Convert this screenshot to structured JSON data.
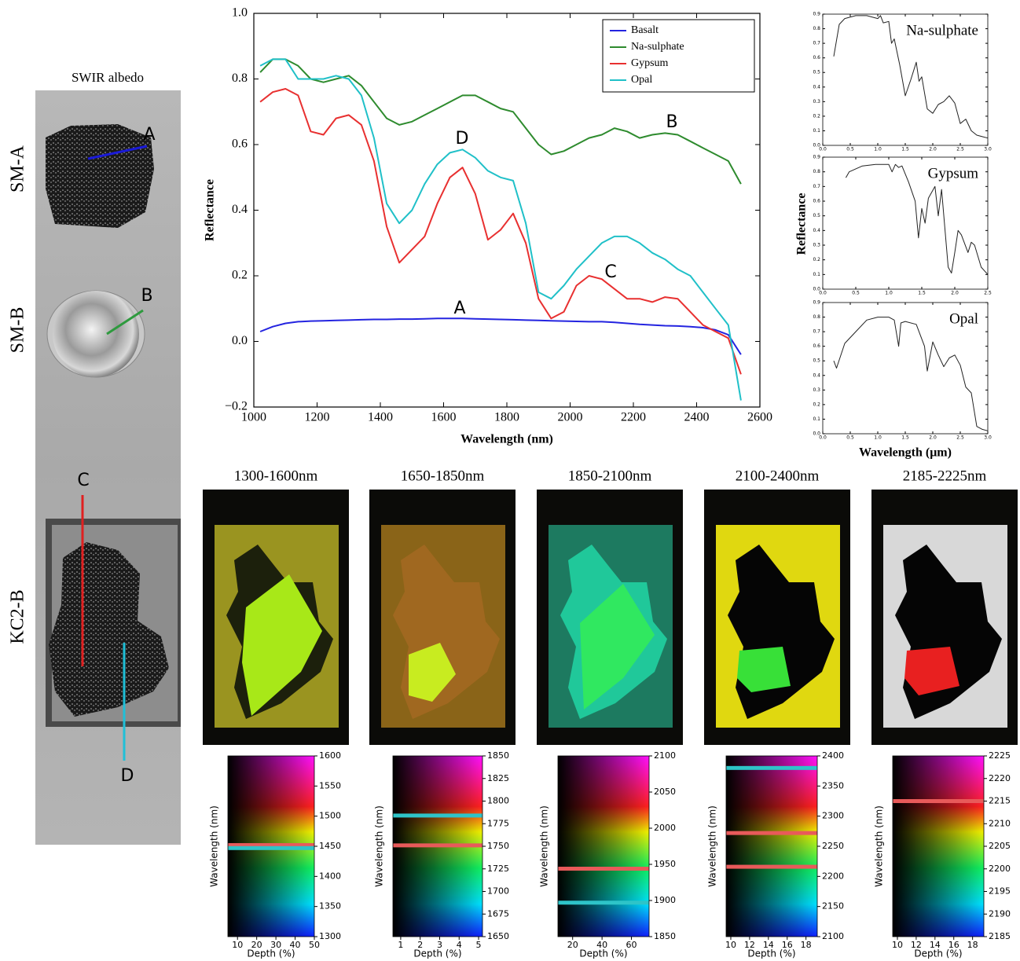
{
  "photo": {
    "title": "SWIR albedo",
    "samples": [
      "SM-A",
      "SM-B",
      "KC2-B"
    ],
    "markers": [
      {
        "label": "A",
        "color": "#1a1ad8"
      },
      {
        "label": "B",
        "color": "#2e9a3e"
      },
      {
        "label": "C",
        "color": "#e02020"
      },
      {
        "label": "D",
        "color": "#20c0d8"
      }
    ]
  },
  "chart_data": [
    {
      "type": "line",
      "xlabel": "Wavelength  (nm)",
      "ylabel": "Reflectance",
      "x": [
        1020,
        1060,
        1100,
        1140,
        1180,
        1220,
        1260,
        1300,
        1340,
        1380,
        1420,
        1460,
        1500,
        1540,
        1580,
        1620,
        1660,
        1700,
        1740,
        1780,
        1820,
        1860,
        1900,
        1940,
        1980,
        2020,
        2060,
        2100,
        2140,
        2180,
        2220,
        2260,
        2300,
        2340,
        2380,
        2420,
        2460,
        2500,
        2540
      ],
      "series": [
        {
          "name": "Basalt",
          "color": "#2424e0",
          "values": [
            0.03,
            0.045,
            0.055,
            0.06,
            0.062,
            0.063,
            0.064,
            0.065,
            0.066,
            0.067,
            0.067,
            0.068,
            0.068,
            0.069,
            0.07,
            0.07,
            0.07,
            0.069,
            0.068,
            0.067,
            0.066,
            0.065,
            0.064,
            0.063,
            0.062,
            0.061,
            0.06,
            0.06,
            0.058,
            0.055,
            0.052,
            0.05,
            0.048,
            0.047,
            0.045,
            0.042,
            0.035,
            0.02,
            -0.04
          ]
        },
        {
          "name": "Na-sulphate",
          "color": "#2e8b2e",
          "values": [
            0.82,
            0.86,
            0.86,
            0.84,
            0.8,
            0.79,
            0.8,
            0.81,
            0.78,
            0.73,
            0.68,
            0.66,
            0.67,
            0.69,
            0.71,
            0.73,
            0.75,
            0.75,
            0.73,
            0.71,
            0.7,
            0.65,
            0.6,
            0.57,
            0.58,
            0.6,
            0.62,
            0.63,
            0.65,
            0.64,
            0.62,
            0.63,
            0.635,
            0.63,
            0.61,
            0.59,
            0.57,
            0.55,
            0.48
          ]
        },
        {
          "name": "Gypsum",
          "color": "#e83030",
          "values": [
            0.73,
            0.76,
            0.77,
            0.75,
            0.64,
            0.63,
            0.68,
            0.69,
            0.66,
            0.55,
            0.35,
            0.24,
            0.28,
            0.32,
            0.42,
            0.5,
            0.53,
            0.45,
            0.31,
            0.34,
            0.39,
            0.3,
            0.13,
            0.07,
            0.09,
            0.17,
            0.2,
            0.19,
            0.16,
            0.13,
            0.13,
            0.12,
            0.135,
            0.13,
            0.09,
            0.05,
            0.03,
            0.01,
            -0.1
          ]
        },
        {
          "name": "Opal",
          "color": "#20c0c8",
          "values": [
            0.84,
            0.86,
            0.86,
            0.8,
            0.8,
            0.8,
            0.81,
            0.8,
            0.75,
            0.62,
            0.42,
            0.36,
            0.4,
            0.48,
            0.54,
            0.575,
            0.585,
            0.56,
            0.52,
            0.5,
            0.49,
            0.36,
            0.15,
            0.13,
            0.17,
            0.22,
            0.26,
            0.3,
            0.32,
            0.32,
            0.3,
            0.27,
            0.25,
            0.22,
            0.2,
            0.15,
            0.1,
            0.05,
            -0.18
          ]
        }
      ],
      "annotations": [
        "A",
        "B",
        "C",
        "D"
      ],
      "xlim": [
        1000,
        2600
      ],
      "xticks": [
        1000,
        1200,
        1400,
        1600,
        1800,
        2000,
        2200,
        2400,
        2600
      ],
      "ylim": [
        -0.2,
        1.0
      ],
      "yticks": [
        {
          "value": -0.2,
          "label": "−0.2"
        },
        {
          "value": 0,
          "label": "0.0"
        },
        0.2,
        0.4,
        0.6,
        0.8,
        {
          "value": 1,
          "label": "1.0"
        }
      ],
      "legend": "upper right"
    },
    {
      "type": "line",
      "title": "Na-sulphate",
      "x": [
        0.2,
        0.3,
        0.4,
        0.6,
        0.8,
        1.0,
        1.05,
        1.1,
        1.2,
        1.25,
        1.3,
        1.4,
        1.5,
        1.6,
        1.7,
        1.75,
        1.8,
        1.9,
        2.0,
        2.1,
        2.2,
        2.3,
        2.4,
        2.5,
        2.6,
        2.7,
        2.8,
        2.9,
        3.0
      ],
      "series": [
        {
          "color": "#222222",
          "values": [
            0.61,
            0.83,
            0.87,
            0.89,
            0.89,
            0.87,
            0.89,
            0.84,
            0.85,
            0.7,
            0.73,
            0.55,
            0.34,
            0.45,
            0.57,
            0.44,
            0.47,
            0.25,
            0.22,
            0.28,
            0.3,
            0.34,
            0.29,
            0.15,
            0.18,
            0.1,
            0.07,
            0.06,
            0.05
          ]
        }
      ],
      "xlim": [
        0,
        3
      ],
      "xticks": [
        {
          "value": 0,
          "label": "0.0"
        },
        0.5,
        {
          "value": 1,
          "label": "1.0"
        },
        1.5,
        {
          "value": 2,
          "label": "2.0"
        },
        2.5,
        {
          "value": 3,
          "label": "3.0"
        }
      ],
      "ylim": [
        0,
        0.9
      ],
      "yticks": [
        {
          "value": 0,
          "label": "0.0"
        },
        0.1,
        0.2,
        0.3,
        0.4,
        0.5,
        0.6,
        0.7,
        0.8,
        0.9
      ]
    },
    {
      "type": "line",
      "title": "Gypsum",
      "ylabel": "Reflectance",
      "x": [
        0.35,
        0.4,
        0.6,
        0.8,
        1.0,
        1.05,
        1.1,
        1.15,
        1.2,
        1.3,
        1.4,
        1.45,
        1.5,
        1.55,
        1.6,
        1.7,
        1.75,
        1.8,
        1.9,
        1.95,
        2.0,
        2.05,
        2.1,
        2.2,
        2.25,
        2.3,
        2.4,
        2.5
      ],
      "series": [
        {
          "color": "#222222",
          "values": [
            0.76,
            0.8,
            0.84,
            0.85,
            0.85,
            0.8,
            0.85,
            0.83,
            0.84,
            0.73,
            0.6,
            0.35,
            0.55,
            0.45,
            0.62,
            0.7,
            0.5,
            0.68,
            0.15,
            0.11,
            0.25,
            0.4,
            0.37,
            0.25,
            0.32,
            0.3,
            0.15,
            0.1
          ]
        }
      ],
      "xlim": [
        0,
        2.5
      ],
      "xticks": [
        {
          "value": 0,
          "label": "0.0"
        },
        0.5,
        {
          "value": 1,
          "label": "1.0"
        },
        1.5,
        {
          "value": 2,
          "label": "2.0"
        },
        2.5
      ],
      "ylim": [
        0,
        0.9
      ],
      "yticks": [
        {
          "value": 0,
          "label": "0.0"
        },
        0.1,
        0.2,
        0.3,
        0.4,
        0.5,
        0.6,
        0.7,
        0.8,
        0.9
      ]
    },
    {
      "type": "line",
      "title": "Opal",
      "xlabel": "Wavelength (μm)",
      "x": [
        0.2,
        0.25,
        0.4,
        0.6,
        0.8,
        1.0,
        1.2,
        1.3,
        1.38,
        1.42,
        1.5,
        1.7,
        1.85,
        1.9,
        2.0,
        2.1,
        2.2,
        2.3,
        2.4,
        2.5,
        2.6,
        2.7,
        2.8,
        2.9,
        3.0
      ],
      "series": [
        {
          "color": "#222222",
          "values": [
            0.5,
            0.45,
            0.62,
            0.7,
            0.78,
            0.8,
            0.8,
            0.78,
            0.6,
            0.76,
            0.77,
            0.75,
            0.6,
            0.43,
            0.63,
            0.54,
            0.46,
            0.52,
            0.54,
            0.47,
            0.32,
            0.28,
            0.05,
            0.03,
            0.02
          ]
        }
      ],
      "xlim": [
        0,
        3
      ],
      "xticks": [
        {
          "value": 0,
          "label": "0.0"
        },
        0.5,
        {
          "value": 1,
          "label": "1.0"
        },
        1.5,
        {
          "value": 2,
          "label": "2.0"
        },
        2.5,
        {
          "value": 3,
          "label": "3.0"
        }
      ],
      "ylim": [
        0,
        0.9
      ],
      "yticks": [
        {
          "value": 0,
          "label": "0.0"
        },
        0.1,
        0.2,
        0.3,
        0.4,
        0.5,
        0.6,
        0.7,
        0.8,
        0.9
      ]
    },
    {
      "type": "colorbar",
      "title": "1300-1600nm",
      "xlabel": "Depth (%)",
      "ylabel": "Wavelength (nm)",
      "xlim": [
        5,
        50
      ],
      "xticks": [
        10,
        20,
        30,
        40,
        50
      ],
      "ylim": [
        1300,
        1600
      ],
      "yticks": [
        1300,
        1350,
        1400,
        1450,
        1500,
        1550,
        1600
      ],
      "lines": [
        {
          "value": 1452,
          "color": "#e85a5a"
        },
        {
          "value": 1447,
          "color": "#2ec4c8"
        }
      ]
    },
    {
      "type": "colorbar",
      "title": "1650-1850nm",
      "xlabel": "Depth (%)",
      "ylabel": "Wavelength (nm)",
      "xlim": [
        0.6,
        5.2
      ],
      "xticks": [
        1,
        2,
        3,
        4,
        5
      ],
      "ylim": [
        1650,
        1850
      ],
      "yticks": [
        1650,
        1675,
        1700,
        1725,
        1750,
        1775,
        1800,
        1825,
        1850
      ],
      "lines": [
        {
          "value": 1784,
          "color": "#2ec4c8"
        },
        {
          "value": 1751,
          "color": "#e85a5a"
        }
      ]
    },
    {
      "type": "colorbar",
      "title": "1850-2100nm",
      "xlabel": "Depth (%)",
      "ylabel": "Wavelength (nm)",
      "xlim": [
        10,
        72
      ],
      "xticks": [
        20,
        40,
        60
      ],
      "ylim": [
        1850,
        2100
      ],
      "yticks": [
        1850,
        1900,
        1950,
        2000,
        2050,
        2100
      ],
      "lines": [
        {
          "value": 1944,
          "color": "#e85a5a"
        },
        {
          "value": 1897,
          "color": "#2ec4c8"
        }
      ]
    },
    {
      "type": "colorbar",
      "title": "2100-2400nm",
      "xlabel": "Depth (%)",
      "ylabel": "Wavelength (nm)",
      "xlim": [
        9.5,
        19.2
      ],
      "xticks": [
        10,
        12,
        14,
        16,
        18
      ],
      "ylim": [
        2100,
        2400
      ],
      "yticks": [
        2100,
        2150,
        2200,
        2250,
        2300,
        2350,
        2400
      ],
      "lines": [
        {
          "value": 2380,
          "color": "#2ec4c8"
        },
        {
          "value": 2272,
          "color": "#e85a5a"
        },
        {
          "value": 2216,
          "color": "#e85a5a"
        }
      ]
    },
    {
      "type": "colorbar",
      "title": "2185-2225nm",
      "xlabel": "Depth (%)",
      "ylabel": "Wavelength (nm)",
      "xlim": [
        9.5,
        19.2
      ],
      "xticks": [
        10,
        12,
        14,
        16,
        18
      ],
      "ylim": [
        2185,
        2225
      ],
      "yticks": [
        2185,
        2190,
        2195,
        2200,
        2205,
        2210,
        2215,
        2220,
        2225
      ],
      "lines": [
        {
          "value": 2215,
          "color": "#e85a5a"
        }
      ]
    }
  ]
}
